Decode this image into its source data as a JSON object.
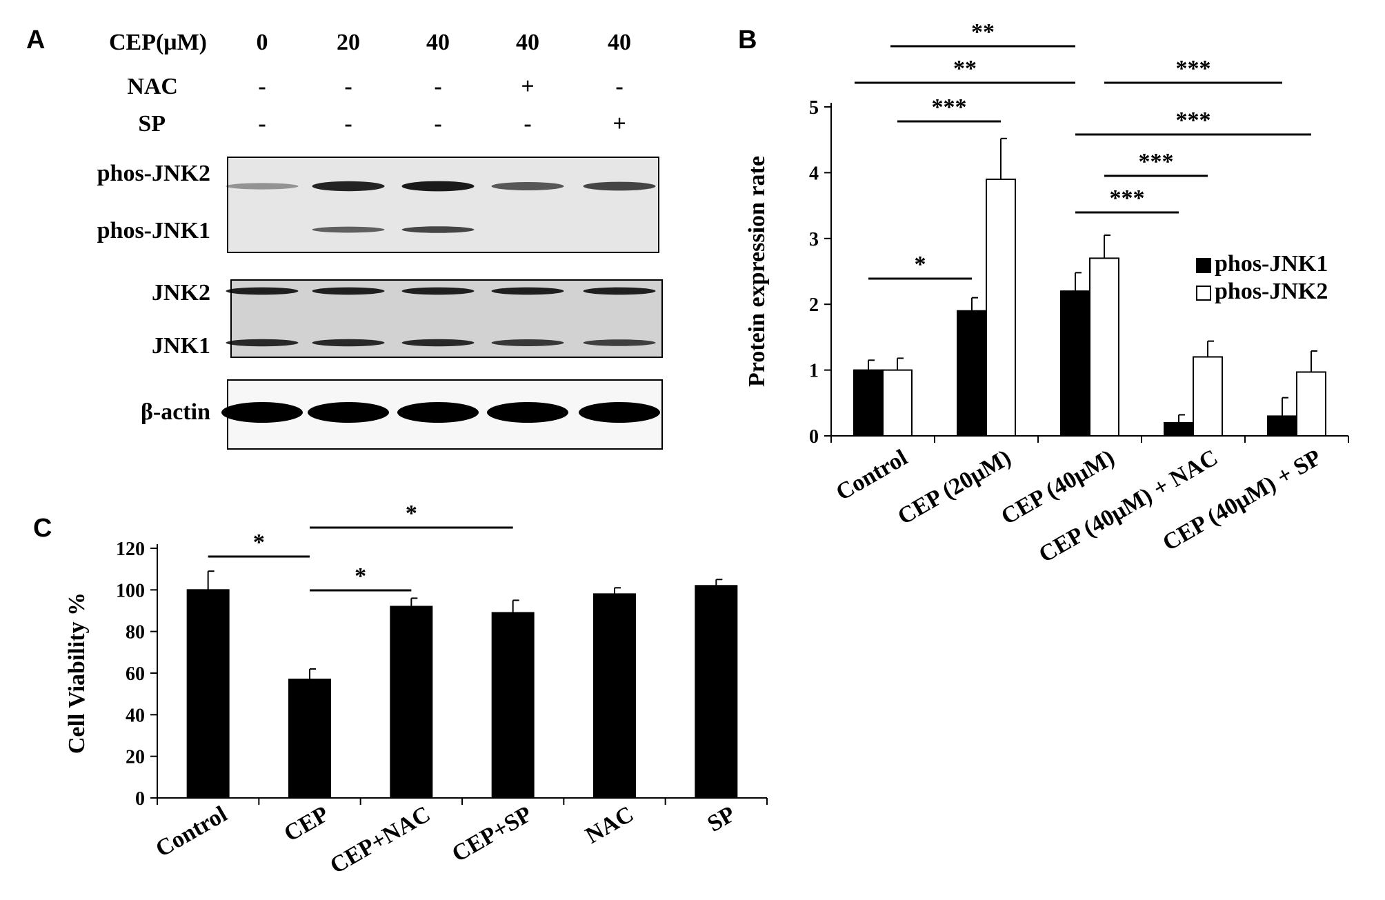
{
  "panels": {
    "a": {
      "letter": "A",
      "treatment_rows": [
        {
          "label": "CEP(μM)",
          "values": [
            "0",
            "20",
            "40",
            "40",
            "40"
          ]
        },
        {
          "label": "NAC",
          "values": [
            "-",
            "-",
            "-",
            "+",
            "-"
          ]
        },
        {
          "label": "SP",
          "values": [
            "-",
            "-",
            "-",
            "-",
            "+"
          ]
        }
      ],
      "blots": [
        {
          "bands": [
            {
              "label": "phos-JNK2",
              "intensity": [
                0.15,
                0.8,
                0.85,
                0.5,
                0.6
              ]
            },
            {
              "label": "phos-JNK1",
              "intensity": [
                0.0,
                0.45,
                0.6,
                0.0,
                0.0
              ]
            }
          ]
        },
        {
          "bands": [
            {
              "label": "JNK2",
              "intensity": [
                0.8,
                0.8,
                0.8,
                0.8,
                0.8
              ]
            },
            {
              "label": "JNK1",
              "intensity": [
                0.75,
                0.75,
                0.75,
                0.65,
                0.6
              ]
            }
          ]
        },
        {
          "bands": [
            {
              "label": "β-actin",
              "intensity": [
                1.0,
                1.0,
                1.0,
                1.0,
                1.0
              ]
            }
          ]
        }
      ]
    },
    "b": {
      "letter": "B"
    },
    "c": {
      "letter": "C"
    }
  },
  "chart_data": [
    {
      "panel": "B",
      "type": "bar",
      "categories": [
        "Control",
        "CEP (20μM)",
        "CEP (40μM)",
        "CEP (40μM) + NAC",
        "CEP (40μM) + SP"
      ],
      "series": [
        {
          "name": "phos-JNK1",
          "color": "#000000",
          "values": [
            1.0,
            1.9,
            2.2,
            0.2,
            0.3
          ],
          "errors": [
            0.15,
            0.2,
            0.28,
            0.12,
            0.28
          ]
        },
        {
          "name": "phos-JNK2",
          "color": "#ffffff",
          "values": [
            1.0,
            3.9,
            2.7,
            1.2,
            0.97
          ],
          "errors": [
            0.18,
            0.62,
            0.35,
            0.24,
            0.32
          ]
        }
      ],
      "ylabel": "Protein expression rate",
      "ylim": [
        0,
        5
      ],
      "yticks": [
        "0",
        "1",
        "2",
        "3",
        "4",
        "5"
      ],
      "legend_position": "right",
      "grid": false,
      "significance": [
        {
          "label": "**",
          "from": "Control",
          "to": "CEP (40μM)",
          "series": [
            "phos-JNK2",
            "phos-JNK1"
          ]
        },
        {
          "label": "**",
          "from": "Control",
          "to": "CEP (40μM)",
          "series": [
            "phos-JNK1",
            "phos-JNK1"
          ]
        },
        {
          "label": "***",
          "from": "Control",
          "to": "CEP (20μM)",
          "series": [
            "phos-JNK2",
            "phos-JNK2"
          ]
        },
        {
          "label": "*",
          "from": "Control",
          "to": "CEP (20μM)",
          "series": [
            "phos-JNK1",
            "phos-JNK1"
          ]
        },
        {
          "label": "***",
          "from": "CEP (40μM)",
          "to": "CEP (40μM) + SP",
          "series": [
            "phos-JNK2",
            "phos-JNK1"
          ]
        },
        {
          "label": "***",
          "from": "CEP (40μM)",
          "to": "CEP (40μM) + SP",
          "series": [
            "phos-JNK1",
            "phos-JNK2"
          ]
        },
        {
          "label": "***",
          "from": "CEP (40μM)",
          "to": "CEP (40μM) + NAC",
          "series": [
            "phos-JNK2",
            "phos-JNK2"
          ]
        },
        {
          "label": "***",
          "from": "CEP (40μM)",
          "to": "CEP (40μM) + NAC",
          "series": [
            "phos-JNK1",
            "phos-JNK1"
          ]
        }
      ]
    },
    {
      "panel": "C",
      "type": "bar",
      "categories": [
        "Control",
        "CEP",
        "CEP+NAC",
        "CEP+SP",
        "NAC",
        "SP"
      ],
      "series": [
        {
          "color": "#000000",
          "values": [
            100,
            57,
            92,
            89,
            98,
            102
          ],
          "errors": [
            9,
            5,
            4,
            6,
            3,
            3
          ]
        }
      ],
      "ylabel": "Cell Viability %",
      "ylim": [
        0,
        120
      ],
      "yticks": [
        "0",
        "20",
        "40",
        "60",
        "80",
        "100",
        "120"
      ],
      "grid": false,
      "significance": [
        {
          "label": "*",
          "from": "Control",
          "to": "CEP"
        },
        {
          "label": "*",
          "from": "CEP",
          "to": "CEP+SP"
        },
        {
          "label": "*",
          "from": "CEP",
          "to": "CEP+NAC"
        }
      ]
    }
  ]
}
